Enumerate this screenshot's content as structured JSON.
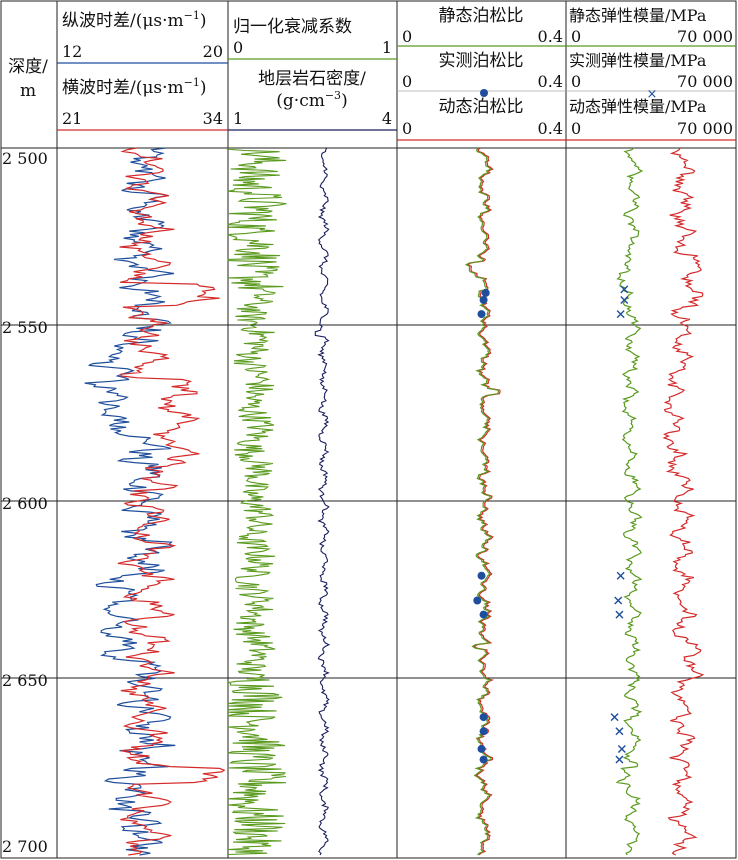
{
  "chart_data": {
    "type": "line",
    "depth_axis": {
      "label_line1": "深度/",
      "label_line2": "m",
      "ticks": [
        "2 500",
        "2 550",
        "2 600",
        "2 650",
        "2 700"
      ],
      "range": [
        2500,
        2700
      ]
    },
    "tracks": [
      {
        "id": "track1",
        "curves": [
          {
            "name": "纵波时差/(μs·m",
            "sup": "−1",
            "tail": ")",
            "min": 12,
            "max": 20,
            "min_label": "12",
            "max_label": "20",
            "color": "#1f4e9c",
            "style": "line"
          },
          {
            "name": "横波时差/(μs·m",
            "sup": "−1",
            "tail": ")",
            "min": 21,
            "max": 34,
            "min_label": "21",
            "max_label": "34",
            "color": "#d42a2a",
            "style": "line"
          }
        ]
      },
      {
        "id": "track2",
        "curves": [
          {
            "name": "归一化衰减系数",
            "min": 0,
            "max": 1,
            "min_label": "0",
            "max_label": "1",
            "color": "#5a9a1e",
            "style": "line"
          },
          {
            "name_line1": "地层岩石密度/",
            "name_line2": "(g·cm",
            "sup": "−3",
            "tail": ")",
            "min": 1,
            "max": 4,
            "min_label": "1",
            "max_label": "4",
            "color": "#1a1f5e",
            "style": "line"
          }
        ]
      },
      {
        "id": "track3",
        "curves": [
          {
            "name": "静态泊松比",
            "min": 0,
            "max": 0.4,
            "min_label": "0",
            "max_label": "0.4",
            "color": "#5a9a1e",
            "style": "line"
          },
          {
            "name": "实测泊松比",
            "min": 0,
            "max": 0.4,
            "min_label": "0",
            "max_label": "0.4",
            "color": "#1f4e9c",
            "style": "dots"
          },
          {
            "name": "动态泊松比",
            "min": 0,
            "max": 0.4,
            "min_label": "0",
            "max_label": "0.4",
            "color": "#d42a2a",
            "style": "line"
          }
        ]
      },
      {
        "id": "track4",
        "curves": [
          {
            "name": "静态弹性模量/MPa",
            "min": 0,
            "max": 70000,
            "min_label": "0",
            "max_label": "70 000",
            "color": "#5a9a1e",
            "style": "line"
          },
          {
            "name": "实测弹性模量/MPa",
            "min": 0,
            "max": 70000,
            "min_label": "0",
            "max_label": "70 000",
            "color": "#1f4e9c",
            "style": "crosses"
          },
          {
            "name": "动态弹性模量/MPa",
            "min": 0,
            "max": 70000,
            "min_label": "0",
            "max_label": "70 000",
            "color": "#d42a2a",
            "style": "line"
          }
        ]
      }
    ],
    "measured_poisson": [
      {
        "depth": 2541,
        "value": 0.21
      },
      {
        "depth": 2543,
        "value": 0.205
      },
      {
        "depth": 2547,
        "value": 0.2
      },
      {
        "depth": 2621,
        "value": 0.2
      },
      {
        "depth": 2628,
        "value": 0.19
      },
      {
        "depth": 2632,
        "value": 0.205
      },
      {
        "depth": 2661,
        "value": 0.205
      },
      {
        "depth": 2665,
        "value": 0.205
      },
      {
        "depth": 2670,
        "value": 0.2
      },
      {
        "depth": 2673,
        "value": 0.205
      }
    ],
    "measured_modulus": [
      {
        "depth": 2540,
        "value": 24000
      },
      {
        "depth": 2543,
        "value": 24000
      },
      {
        "depth": 2547,
        "value": 22500
      },
      {
        "depth": 2621,
        "value": 22500
      },
      {
        "depth": 2628,
        "value": 21500
      },
      {
        "depth": 2632,
        "value": 22000
      },
      {
        "depth": 2661,
        "value": 20000
      },
      {
        "depth": 2665,
        "value": 22000
      },
      {
        "depth": 2670,
        "value": 23000
      },
      {
        "depth": 2673,
        "value": 22000
      }
    ]
  }
}
